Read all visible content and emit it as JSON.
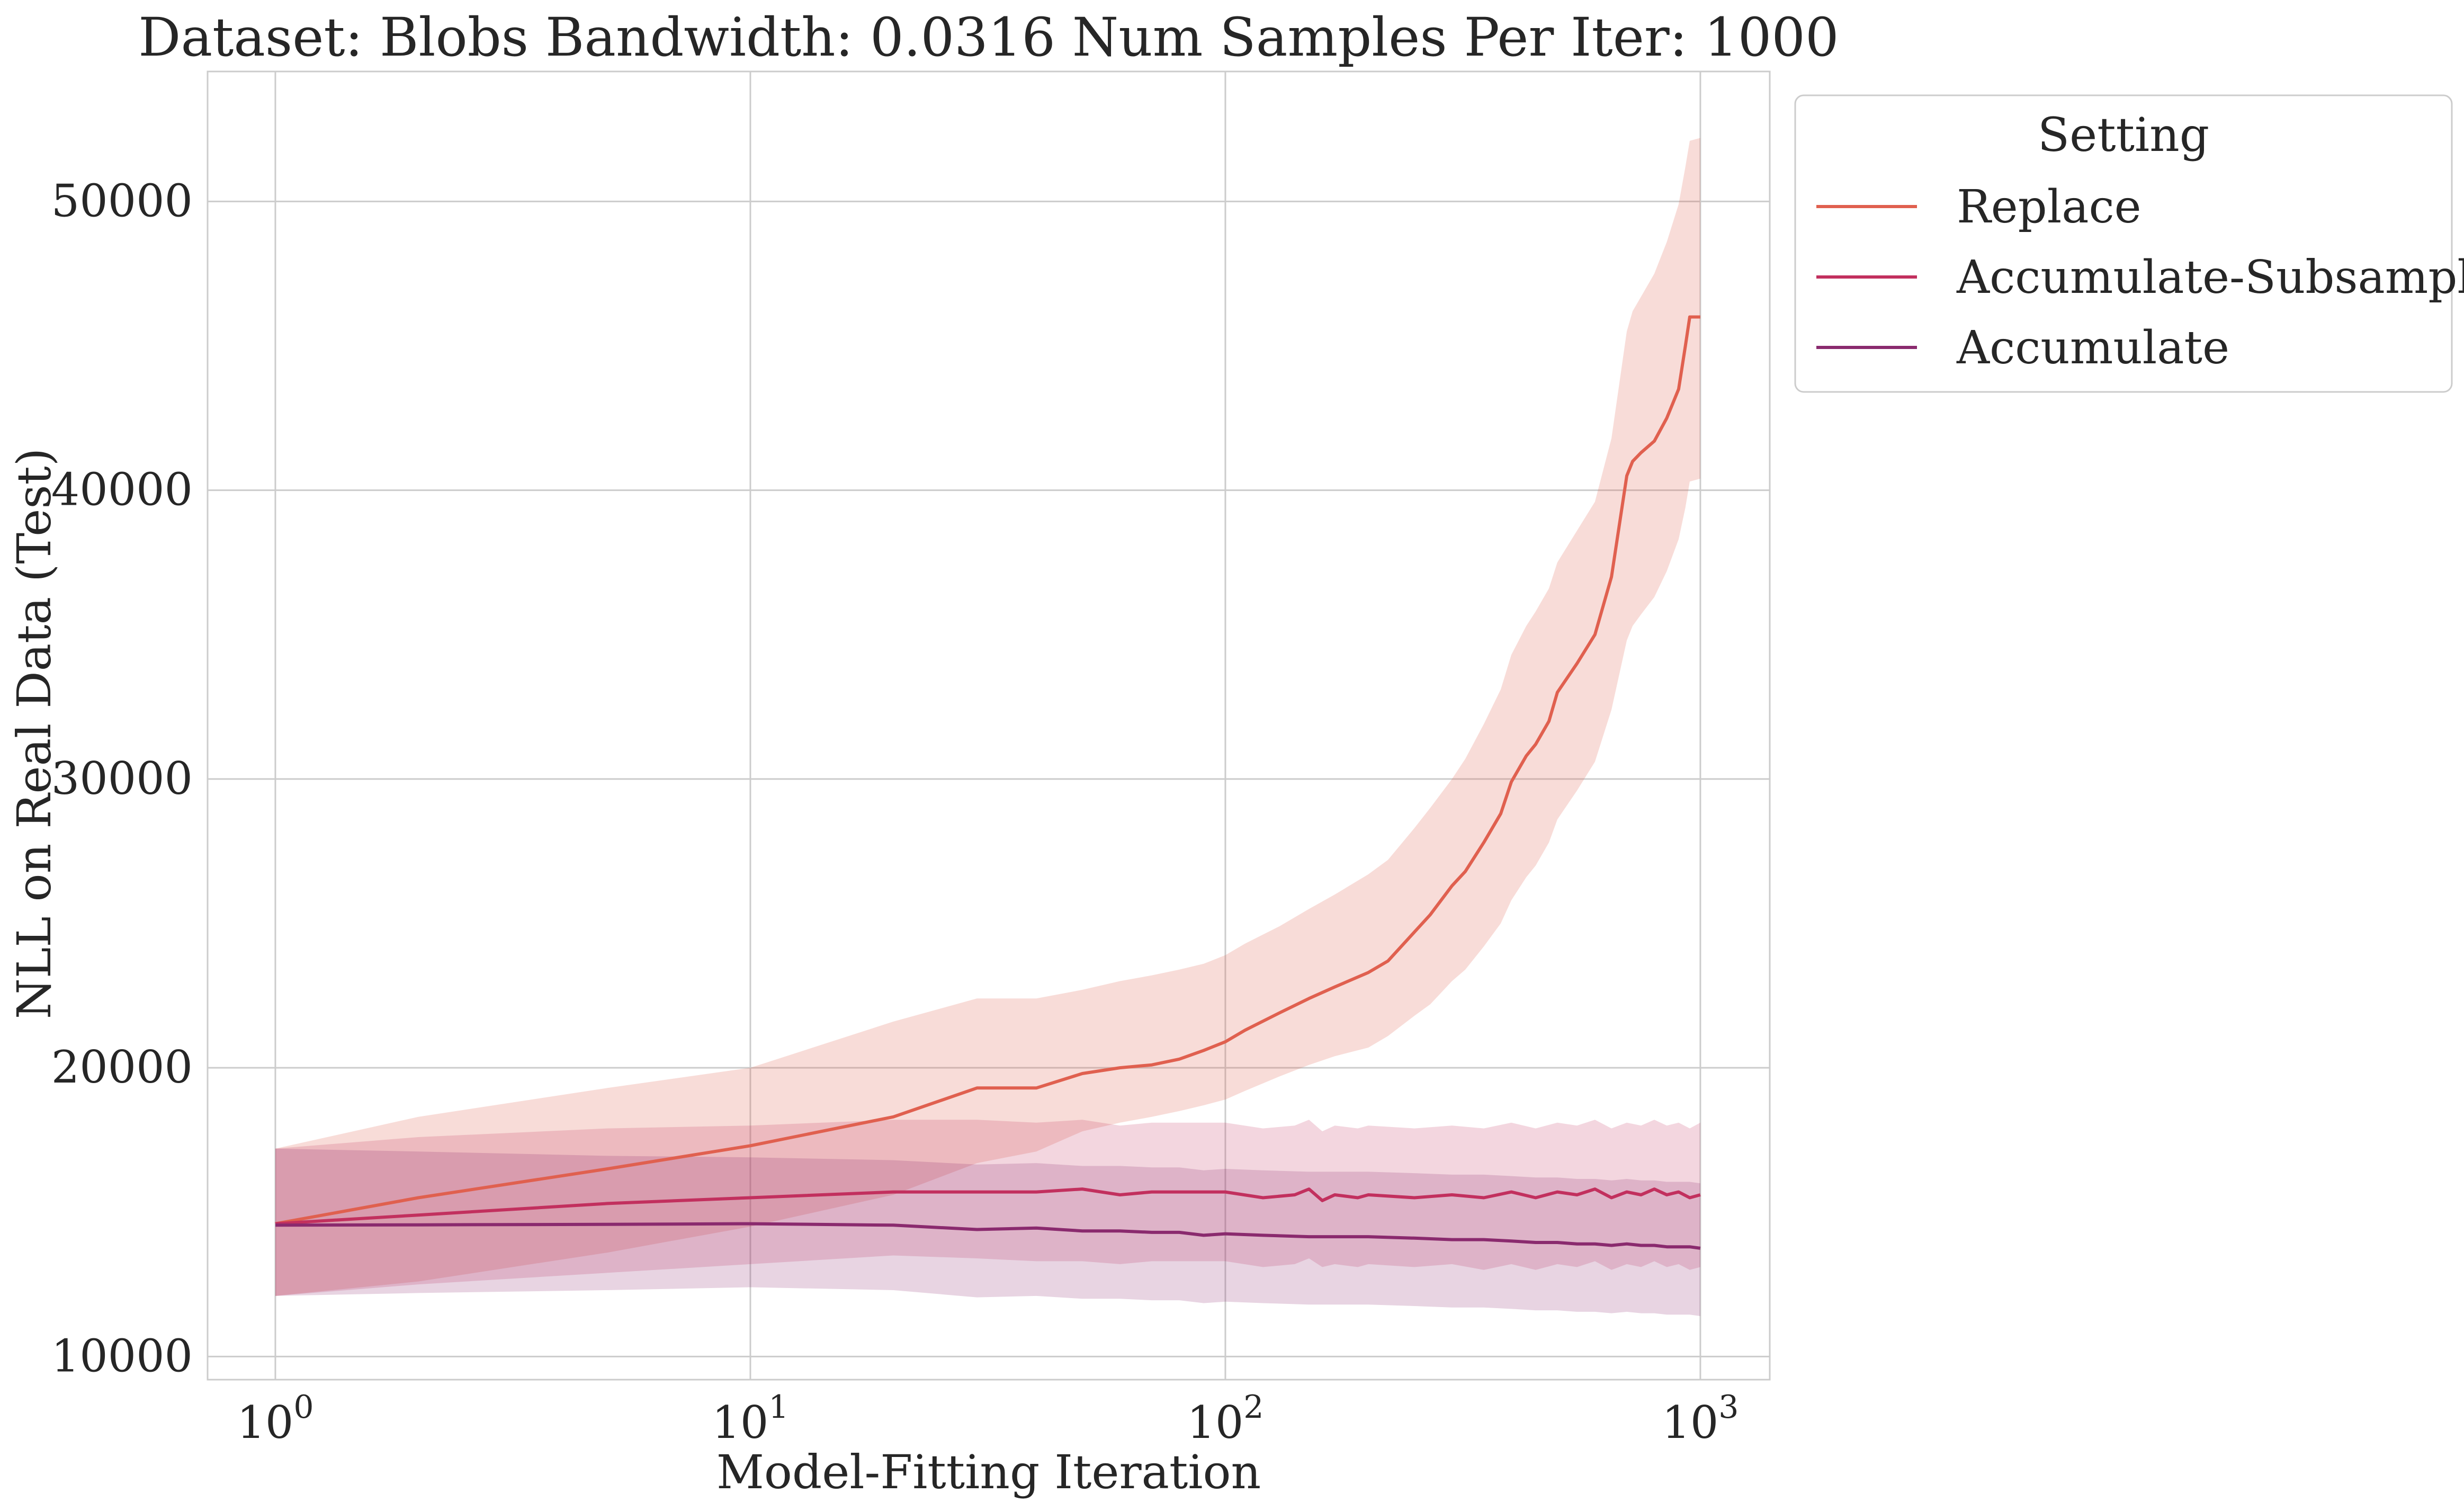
{
  "chart_data": {
    "type": "line",
    "title": "Dataset: Blobs Bandwidth: 0.0316 Num Samples Per Iter: 1000",
    "xlabel": "Model-Fitting Iteration",
    "ylabel": "NLL on Real Data (Test)",
    "xscale": "log",
    "xlim": [
      0.72,
      1400
    ],
    "ylim": [
      9200,
      54500
    ],
    "x_ticks": [
      {
        "value": 1,
        "base": "10",
        "exp": "0"
      },
      {
        "value": 10,
        "base": "10",
        "exp": "1"
      },
      {
        "value": 100,
        "base": "10",
        "exp": "2"
      },
      {
        "value": 1000,
        "base": "10",
        "exp": "3"
      }
    ],
    "y_ticks": [
      10000,
      20000,
      30000,
      40000,
      50000
    ],
    "grid": true,
    "legend": {
      "title": "Setting",
      "placement": "outside-top-right"
    },
    "series": [
      {
        "name": "Replace",
        "color": "#e0604f",
        "band_opacity": 0.22,
        "x": [
          1,
          2,
          5,
          10,
          20,
          30,
          40,
          50,
          60,
          70,
          80,
          90,
          100,
          110,
          130,
          150,
          170,
          200,
          220,
          250,
          270,
          300,
          320,
          350,
          380,
          400,
          430,
          450,
          480,
          500,
          550,
          600,
          650,
          700,
          720,
          750,
          800,
          850,
          900,
          930,
          950,
          1000
        ],
        "y": [
          14600,
          15500,
          16500,
          17300,
          18300,
          19300,
          19300,
          19800,
          20000,
          20100,
          20300,
          20600,
          20900,
          21300,
          21900,
          22400,
          22800,
          23300,
          23700,
          24700,
          25300,
          26300,
          26800,
          27800,
          28800,
          29900,
          30800,
          31200,
          32000,
          33000,
          34000,
          35000,
          37000,
          40500,
          41000,
          41300,
          41700,
          42500,
          43500,
          45000,
          46000,
          46000
        ],
        "lower": [
          12100,
          12600,
          13600,
          14500,
          15600,
          16700,
          17100,
          17800,
          18100,
          18300,
          18500,
          18700,
          18900,
          19200,
          19700,
          20100,
          20400,
          20700,
          21100,
          21800,
          22200,
          23000,
          23400,
          24200,
          25000,
          25800,
          26600,
          27000,
          27800,
          28600,
          29600,
          30600,
          32400,
          34800,
          35300,
          35700,
          36300,
          37200,
          38300,
          39400,
          40300,
          40400
        ],
        "upper": [
          17200,
          18300,
          19300,
          20000,
          21600,
          22400,
          22400,
          22700,
          23000,
          23200,
          23400,
          23600,
          23900,
          24300,
          24900,
          25500,
          26000,
          26700,
          27200,
          28300,
          29000,
          30000,
          30700,
          31900,
          33100,
          34300,
          35300,
          35800,
          36600,
          37500,
          38600,
          39600,
          41800,
          45500,
          46200,
          46700,
          47500,
          48600,
          49900,
          51200,
          52100,
          52200
        ]
      },
      {
        "name": "Accumulate-Subsample",
        "color": "#c2305e",
        "band_opacity": 0.2,
        "x": [
          1,
          2,
          5,
          10,
          20,
          30,
          40,
          50,
          60,
          70,
          80,
          100,
          120,
          140,
          150,
          160,
          170,
          190,
          200,
          250,
          300,
          350,
          400,
          450,
          500,
          550,
          600,
          650,
          700,
          750,
          800,
          850,
          900,
          950,
          1000
        ],
        "y": [
          14600,
          14900,
          15300,
          15500,
          15700,
          15700,
          15700,
          15800,
          15600,
          15700,
          15700,
          15700,
          15500,
          15600,
          15800,
          15400,
          15600,
          15500,
          15600,
          15500,
          15600,
          15500,
          15700,
          15500,
          15700,
          15600,
          15800,
          15500,
          15700,
          15600,
          15800,
          15600,
          15700,
          15500,
          15600
        ],
        "lower": [
          12100,
          12500,
          12900,
          13200,
          13500,
          13400,
          13300,
          13300,
          13200,
          13300,
          13300,
          13300,
          13100,
          13200,
          13400,
          13100,
          13200,
          13100,
          13200,
          13100,
          13200,
          13000,
          13200,
          13000,
          13200,
          13100,
          13300,
          13000,
          13200,
          13100,
          13300,
          13100,
          13200,
          13000,
          13100
        ],
        "upper": [
          17200,
          17600,
          17900,
          18000,
          18200,
          18200,
          18100,
          18200,
          18000,
          18100,
          18100,
          18100,
          17900,
          18000,
          18200,
          17800,
          18000,
          17900,
          18000,
          17900,
          18000,
          17900,
          18100,
          17900,
          18100,
          18000,
          18200,
          17900,
          18100,
          18000,
          18200,
          18000,
          18100,
          17900,
          18100
        ]
      },
      {
        "name": "Accumulate",
        "color": "#8a2a6e",
        "band_opacity": 0.2,
        "x": [
          1,
          2,
          5,
          10,
          20,
          30,
          40,
          50,
          60,
          70,
          80,
          90,
          100,
          120,
          150,
          200,
          250,
          300,
          350,
          400,
          450,
          500,
          550,
          600,
          650,
          700,
          750,
          800,
          850,
          900,
          950,
          1000
        ],
        "y": [
          14550,
          14560,
          14580,
          14600,
          14550,
          14400,
          14450,
          14350,
          14350,
          14300,
          14300,
          14200,
          14250,
          14200,
          14150,
          14150,
          14100,
          14050,
          14050,
          14000,
          13950,
          13950,
          13900,
          13900,
          13850,
          13900,
          13850,
          13850,
          13800,
          13800,
          13800,
          13750
        ],
        "lower": [
          12100,
          12200,
          12300,
          12400,
          12300,
          12050,
          12100,
          12000,
          12000,
          11950,
          11950,
          11850,
          11900,
          11850,
          11800,
          11800,
          11750,
          11700,
          11700,
          11650,
          11600,
          11600,
          11550,
          11550,
          11500,
          11550,
          11500,
          11500,
          11450,
          11450,
          11450,
          11400
        ],
        "upper": [
          17200,
          17100,
          16950,
          16900,
          16800,
          16650,
          16700,
          16600,
          16600,
          16550,
          16550,
          16450,
          16500,
          16450,
          16400,
          16400,
          16350,
          16300,
          16300,
          16250,
          16200,
          16200,
          16150,
          16150,
          16100,
          16150,
          16100,
          16100,
          16050,
          16050,
          16050,
          16000
        ]
      }
    ]
  }
}
